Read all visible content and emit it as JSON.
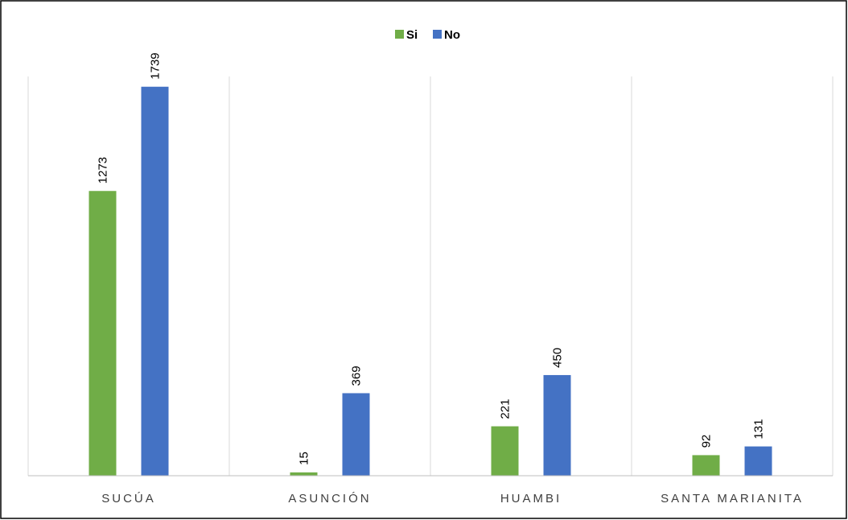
{
  "chart_data": {
    "type": "bar",
    "title": "",
    "xlabel": "",
    "ylabel": "",
    "categories": [
      "SUCÚA",
      "ASUNCIÓN",
      "HUAMBI",
      "SANTA MARIANITA"
    ],
    "series": [
      {
        "name": "Si",
        "color": "#70ad47",
        "values": [
          1273,
          15,
          221,
          92
        ]
      },
      {
        "name": "No",
        "color": "#4472c4",
        "values": [
          1739,
          369,
          450,
          131
        ]
      }
    ],
    "ylim": [
      0,
      1900
    ],
    "grid": false,
    "legend": "top-center",
    "data_labels": true
  }
}
